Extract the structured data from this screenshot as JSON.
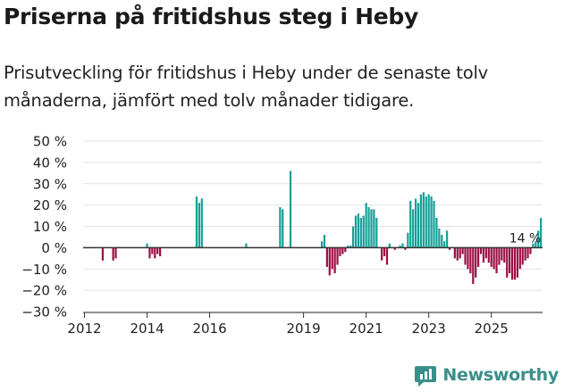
{
  "header": {
    "title": "Priserna på fritidshus steg i Heby",
    "subtitle": "Prisutveckling för fritidshus i Heby under de senaste tolv månaderna, jämfört med tolv månader tidigare."
  },
  "brand": {
    "name": "Newsworthy"
  },
  "colors": {
    "positive": "#14a097",
    "negative": "#9b0f45",
    "axis": "#333333",
    "grid": "#e2e2e2",
    "text": "#222222"
  },
  "chart_data": {
    "type": "bar",
    "title": "Priserna på fritidshus steg i Heby",
    "ylabel": "",
    "xlabel": "",
    "ylim": [
      -30,
      50
    ],
    "yticks": [
      -30,
      -20,
      -10,
      0,
      10,
      20,
      30,
      40,
      50
    ],
    "ytick_labels": [
      "−30 %",
      "−20 %",
      "−10 %",
      "0 %",
      "10 %",
      "20 %",
      "30 %",
      "40 %",
      "50 %"
    ],
    "xticks": [
      "2012",
      "2014",
      "2016",
      "2019",
      "2021",
      "2023",
      "2025"
    ],
    "xtick_months": [
      0,
      24,
      48,
      84,
      108,
      132,
      156
    ],
    "start": "2012-01",
    "annotation": {
      "label": "14 %",
      "month": 171
    },
    "values": [
      null,
      null,
      null,
      null,
      null,
      null,
      null,
      -6,
      null,
      null,
      null,
      -6,
      -5,
      null,
      null,
      null,
      null,
      null,
      null,
      null,
      null,
      null,
      null,
      null,
      2,
      -5,
      -3,
      -5,
      -3,
      -4,
      null,
      null,
      null,
      null,
      null,
      null,
      null,
      null,
      null,
      null,
      null,
      null,
      null,
      24,
      21,
      23,
      null,
      null,
      null,
      null,
      null,
      null,
      null,
      null,
      null,
      null,
      null,
      null,
      null,
      null,
      null,
      null,
      2,
      null,
      null,
      null,
      null,
      null,
      null,
      null,
      null,
      null,
      null,
      null,
      null,
      19,
      18,
      null,
      null,
      36,
      null,
      null,
      null,
      null,
      null,
      null,
      null,
      null,
      null,
      null,
      null,
      3,
      6,
      -9,
      -13,
      -10,
      -12,
      -8,
      -4,
      -3,
      -2,
      1,
      1,
      10,
      15,
      16,
      14,
      15,
      21,
      19,
      18,
      18,
      14,
      null,
      -6,
      -4,
      -8,
      2,
      null,
      -1,
      null,
      1,
      2,
      -1,
      7,
      22,
      18,
      23,
      21,
      25,
      26,
      24,
      25,
      24,
      22,
      14,
      9,
      6,
      3,
      8,
      -1,
      null,
      -5,
      -6,
      -5,
      -3,
      -8,
      -10,
      -12,
      -17,
      -14,
      -9,
      -3,
      -7,
      -5,
      -7,
      -9,
      -10,
      -12,
      -8,
      -6,
      -7,
      -14,
      -12,
      -15,
      -15,
      -14,
      -10,
      -8,
      -6,
      -5,
      -3,
      2,
      3,
      8,
      14
    ]
  }
}
